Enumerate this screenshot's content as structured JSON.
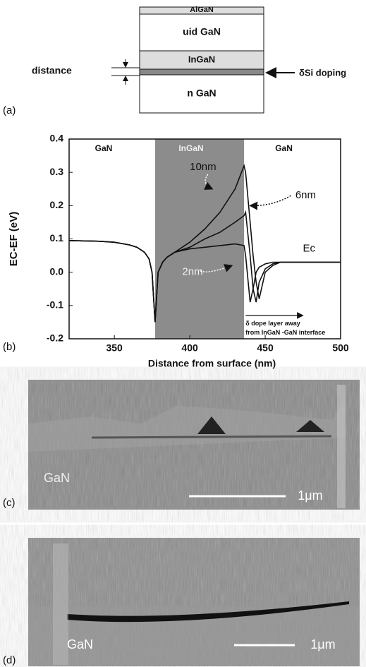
{
  "panel_a": {
    "label": "(a)",
    "layers": [
      "AlGaN",
      "uid GaN",
      "InGaN",
      "n GaN"
    ],
    "distance_label": "distance",
    "doping_label": "δSi doping"
  },
  "chart_data": {
    "type": "line",
    "panel_label": "(b)",
    "xlabel": "Distance from surface (nm)",
    "ylabel": "EC-EF (eV)",
    "xlim": [
      320,
      500
    ],
    "ylim": [
      -0.2,
      0.4
    ],
    "xticks": [
      350,
      400,
      450,
      500
    ],
    "yticks": [
      -0.2,
      -0.1,
      {
        "value": 0,
        "label": "0.0"
      },
      0.1,
      0.2,
      0.3,
      0.4
    ],
    "shaded_region": [
      377,
      436
    ],
    "region_labels": [
      "GaN",
      "InGaN",
      "GaN"
    ],
    "annotations": [
      "Ec",
      "δ dope layer away",
      "from InGaN -GaN interface"
    ],
    "x": [
      320,
      330,
      340,
      350,
      360,
      365,
      370,
      373,
      375,
      377,
      379,
      382,
      385,
      390,
      400,
      410,
      420,
      430,
      436,
      437,
      440,
      442,
      444,
      446,
      450,
      455,
      460,
      470,
      480,
      500
    ],
    "series": [
      {
        "name": "10nm",
        "color": "#111111",
        "values": [
          0.095,
          0.094,
          0.093,
          0.09,
          0.082,
          0.075,
          0.06,
          0.04,
          0.0,
          -0.15,
          0.0,
          0.03,
          0.045,
          0.06,
          0.09,
          0.13,
          0.18,
          0.25,
          0.32,
          0.3,
          0.15,
          0.05,
          -0.03,
          -0.08,
          0.0,
          0.02,
          0.03,
          0.03,
          0.03,
          0.03
        ]
      },
      {
        "name": "6nm",
        "color": "#111111",
        "values": [
          0.095,
          0.094,
          0.093,
          0.09,
          0.082,
          0.075,
          0.06,
          0.04,
          0.0,
          -0.15,
          0.0,
          0.03,
          0.045,
          0.06,
          0.075,
          0.1,
          0.12,
          0.15,
          0.17,
          0.18,
          0.05,
          -0.05,
          -0.09,
          -0.03,
          0.01,
          0.025,
          0.03,
          0.03,
          0.03,
          0.03
        ]
      },
      {
        "name": "2nm",
        "color": "#111111",
        "values": [
          0.095,
          0.094,
          0.093,
          0.09,
          0.082,
          0.075,
          0.06,
          0.04,
          0.0,
          -0.15,
          0.0,
          0.03,
          0.045,
          0.06,
          0.07,
          0.075,
          0.08,
          0.085,
          0.08,
          0.05,
          -0.09,
          -0.05,
          0.0,
          0.015,
          0.025,
          0.03,
          0.03,
          0.03,
          0.03,
          0.03
        ]
      }
    ]
  },
  "panel_c": {
    "label": "(c)",
    "material": "GaN",
    "scale": "1μm"
  },
  "panel_d": {
    "label": "(d)",
    "material": "GaN",
    "scale": "1μm"
  }
}
